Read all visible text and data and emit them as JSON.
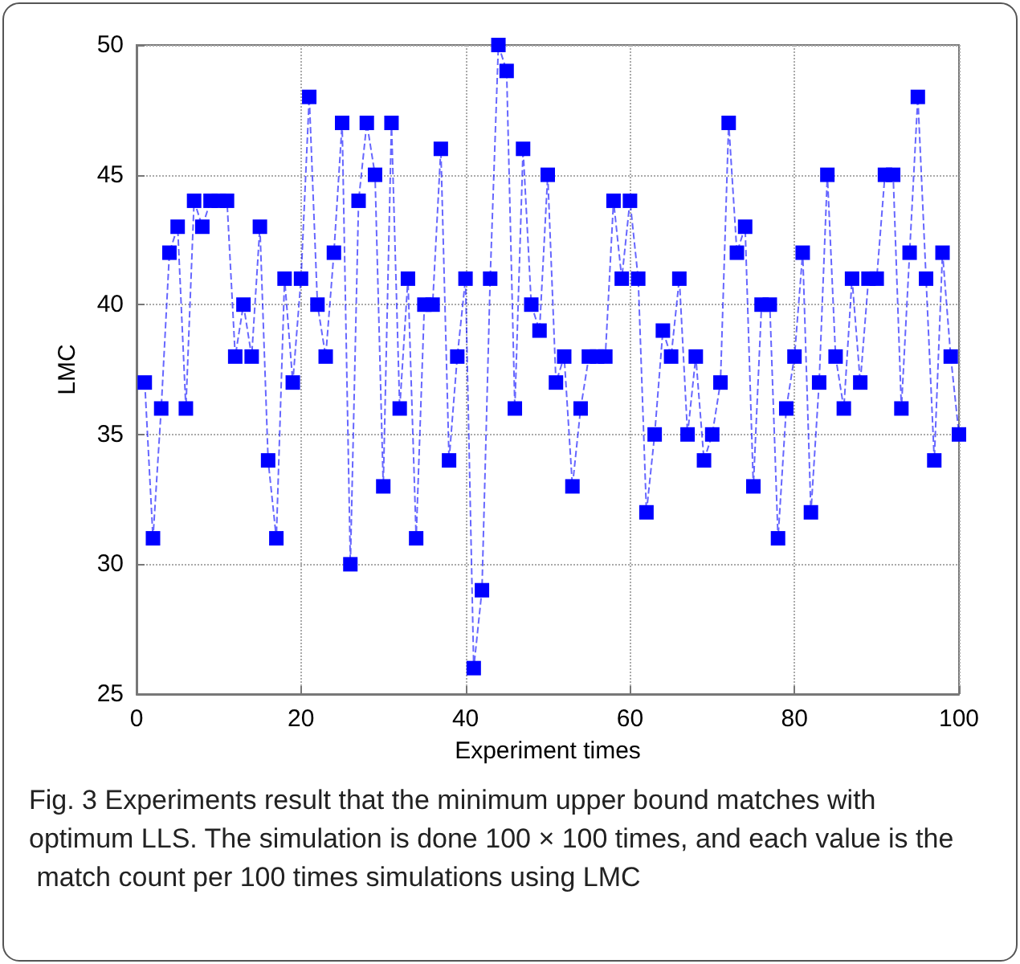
{
  "chart_data": {
    "type": "line",
    "xlabel": "Experiment times",
    "ylabel": "LMC",
    "x": [
      1,
      2,
      3,
      4,
      5,
      6,
      7,
      8,
      9,
      10,
      11,
      12,
      13,
      14,
      15,
      16,
      17,
      18,
      19,
      20,
      21,
      22,
      23,
      24,
      25,
      26,
      27,
      28,
      29,
      30,
      31,
      32,
      33,
      34,
      35,
      36,
      37,
      38,
      39,
      40,
      41,
      42,
      43,
      44,
      45,
      46,
      47,
      48,
      49,
      50,
      51,
      52,
      53,
      54,
      55,
      56,
      57,
      58,
      59,
      60,
      61,
      62,
      63,
      64,
      65,
      66,
      67,
      68,
      69,
      70,
      71,
      72,
      73,
      74,
      75,
      76,
      77,
      78,
      79,
      80,
      81,
      82,
      83,
      84,
      85,
      86,
      87,
      88,
      89,
      90,
      91,
      92,
      93,
      94,
      95,
      96,
      97,
      98,
      99,
      100
    ],
    "series": [
      {
        "color": "#0000ff",
        "values": [
          37,
          31,
          36,
          42,
          43,
          36,
          44,
          43,
          44,
          44,
          44,
          38,
          40,
          38,
          43,
          34,
          31,
          41,
          37,
          41,
          48,
          40,
          38,
          42,
          47,
          30,
          44,
          47,
          45,
          33,
          47,
          36,
          41,
          31,
          40,
          40,
          46,
          34,
          38,
          41,
          26,
          29,
          41,
          50,
          49,
          36,
          46,
          40,
          39,
          45,
          37,
          38,
          33,
          36,
          38,
          38,
          38,
          44,
          41,
          44,
          41,
          32,
          35,
          39,
          38,
          41,
          35,
          38,
          34,
          35,
          37,
          47,
          42,
          43,
          33,
          40,
          40,
          31,
          36,
          38,
          42,
          32,
          37,
          45,
          38,
          36,
          41,
          37,
          41,
          41,
          45,
          45,
          36,
          42,
          48,
          41,
          34,
          42,
          38,
          35
        ]
      }
    ],
    "xlim": [
      0,
      100
    ],
    "xticks": [
      0,
      20,
      40,
      60,
      80,
      100
    ],
    "ylim": [
      25,
      50
    ],
    "yticks": [
      25,
      30,
      35,
      40,
      45,
      50
    ],
    "grid": true,
    "marker": "square",
    "line_style": "dashed",
    "annotations": [
      "Fig. 3 Experiments result that the minimum upper bound matches with optimum LLS. The simulation is done 100 × 100 times, and each value is the match count per 100 times simulations using LMC"
    ]
  }
}
